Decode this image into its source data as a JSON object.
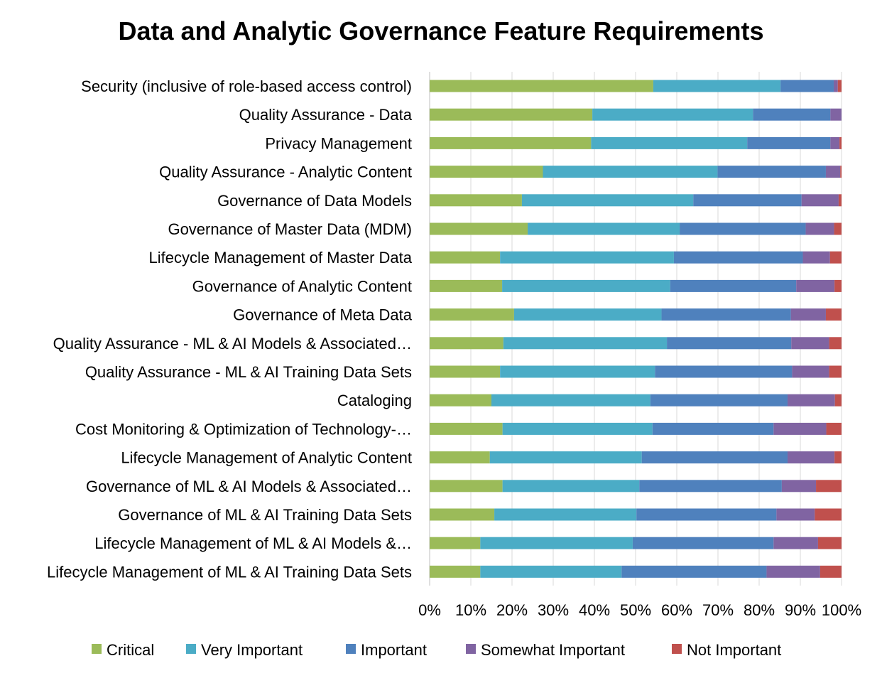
{
  "chart_data": {
    "type": "bar",
    "orientation": "horizontal",
    "stacked": "percent",
    "title": "Data and Analytic Governance Feature Requirements",
    "xlabel": "",
    "ylabel": "",
    "xlim": [
      0,
      100
    ],
    "x_ticks": [
      "0%",
      "10%",
      "20%",
      "30%",
      "40%",
      "50%",
      "60%",
      "70%",
      "80%",
      "90%",
      "100%"
    ],
    "grid": true,
    "legend_position": "bottom",
    "categories": [
      "Security (inclusive of role-based access control)",
      "Quality Assurance - Data",
      "Privacy Management",
      "Quality Assurance - Analytic Content",
      "Governance of Data Models",
      "Governance of Master Data (MDM)",
      "Lifecycle Management of Master Data",
      "Governance of Analytic Content",
      "Governance of Meta Data",
      "Quality Assurance - ML & AI Models & Associated…",
      "Quality Assurance - ML & AI Training Data Sets",
      "Cataloging",
      "Cost Monitoring & Optimization of Technology-…",
      "Lifecycle Management of Analytic Content",
      "Governance of ML & AI Models & Associated…",
      "Governance of ML & AI Training Data Sets",
      "Lifecycle Management of ML & AI Models &…",
      "Lifecycle Management of ML & AI Training Data Sets"
    ],
    "series": [
      {
        "name": "Critical",
        "color": "#9bbb59",
        "values": [
          54.3,
          39.5,
          39.2,
          27.5,
          22.4,
          23.8,
          17.1,
          17.6,
          20.5,
          17.9,
          17.1,
          15.0,
          17.7,
          14.6,
          17.7,
          15.7,
          12.3,
          12.3
        ]
      },
      {
        "name": "Very Important",
        "color": "#4bacc6",
        "values": [
          30.9,
          39.0,
          37.9,
          42.4,
          41.6,
          36.9,
          42.2,
          40.8,
          35.8,
          39.7,
          37.6,
          38.6,
          36.4,
          36.9,
          33.2,
          34.5,
          37.0,
          34.3
        ]
      },
      {
        "name": "Important",
        "color": "#4f81bd",
        "values": [
          12.9,
          18.8,
          20.2,
          26.3,
          26.3,
          30.6,
          31.3,
          30.6,
          31.4,
          30.2,
          33.3,
          33.3,
          29.4,
          35.4,
          34.6,
          34.0,
          34.2,
          35.2
        ]
      },
      {
        "name": "Somewhat Important",
        "color": "#8064a2",
        "values": [
          1.0,
          2.7,
          2.2,
          3.5,
          9.0,
          6.9,
          6.6,
          9.3,
          8.5,
          9.2,
          9.0,
          11.5,
          12.8,
          11.4,
          8.3,
          9.3,
          10.8,
          13.0
        ]
      },
      {
        "name": "Not Important",
        "color": "#c0504d",
        "values": [
          0.9,
          0.0,
          0.5,
          0.3,
          0.7,
          1.8,
          2.8,
          1.7,
          3.8,
          3.0,
          3.0,
          1.6,
          3.7,
          1.7,
          6.2,
          6.5,
          5.7,
          5.2
        ]
      }
    ]
  }
}
